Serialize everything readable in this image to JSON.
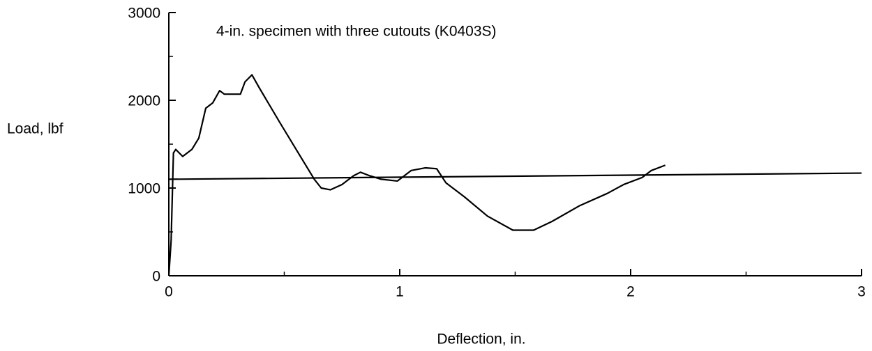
{
  "chart_data": {
    "type": "line",
    "title": "4-in. specimen with three cutouts (K0403S)",
    "xlabel": "Deflection, in.",
    "ylabel": "Load, lbf",
    "xlim": [
      0,
      3
    ],
    "xticks": [
      0,
      1,
      2,
      3
    ],
    "xminorticks": [
      0.5,
      1.5,
      2.5
    ],
    "ylim": [
      0,
      3000
    ],
    "yticks": [
      0,
      1000,
      2000,
      3000
    ],
    "yminorticks": [
      500,
      1500,
      2500
    ],
    "series": [
      {
        "color": "#000000",
        "x": [
          0,
          0.01,
          0.02,
          0.03,
          0.06,
          0.1,
          0.13,
          0.16,
          0.19,
          0.22,
          0.24,
          0.31,
          0.33,
          0.36,
          0.39,
          0.48,
          0.57,
          0.63,
          0.66,
          0.7,
          0.75,
          0.8,
          0.83,
          0.87,
          0.92,
          0.99,
          1.05,
          1.11,
          1.16,
          1.2,
          1.28,
          1.38,
          1.49,
          1.58,
          1.66,
          1.78,
          1.9,
          1.97,
          2.05,
          2.09,
          2.15
        ],
        "values": [
          0,
          400,
          1400,
          1440,
          1360,
          1440,
          1570,
          1910,
          1970,
          2110,
          2070,
          2070,
          2210,
          2290,
          2150,
          1750,
          1360,
          1100,
          1000,
          980,
          1040,
          1140,
          1180,
          1140,
          1100,
          1080,
          1200,
          1230,
          1220,
          1060,
          900,
          680,
          520,
          520,
          620,
          800,
          940,
          1040,
          1120,
          1200,
          1260
        ]
      },
      {
        "color": "#000000",
        "x": [
          0,
          3
        ],
        "values": [
          1100,
          1170
        ]
      }
    ]
  }
}
